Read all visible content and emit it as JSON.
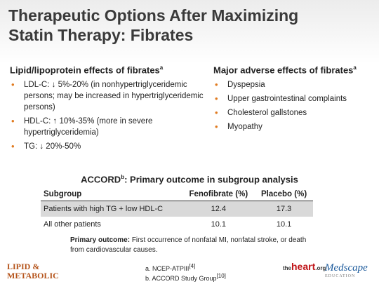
{
  "title": [
    "Therapeutic Options After Maximizing",
    "Statin Therapy: Fibrates"
  ],
  "left": {
    "heading": "Lipid/lipoprotein effects of fibrates",
    "sup": "a",
    "items": [
      "LDL-C: ↓ 5%-20% (in nonhypertriglyceridemic persons; may be increased in hypertriglyceridemic persons)",
      "HDL-C: ↑ 10%-35% (more in severe hypertriglyceridemia)",
      "TG: ↓ 20%-50%"
    ]
  },
  "right": {
    "heading": "Major adverse effects of fibrates",
    "sup": "a",
    "items": [
      "Dyspepsia",
      "Upper gastrointestinal complaints",
      "Cholesterol gallstones",
      "Myopathy"
    ]
  },
  "table": {
    "title": [
      "ACCORD",
      "b",
      ": Primary outcome in subgroup analysis"
    ],
    "columns": [
      "Subgroup",
      "Fenofibrate (%)",
      "Placebo (%)"
    ],
    "rows": [
      [
        "Patients with high TG + low HDL-C",
        12.4,
        17.3
      ],
      [
        "All other patients",
        10.1,
        10.1
      ]
    ]
  },
  "note": {
    "label": "Primary outcome:",
    "text": "First occurrence of nonfatal MI, nonfatal stroke, or death from cardiovascular causes."
  },
  "footnotes": [
    [
      "a. NCEP-ATPIII",
      "[4]"
    ],
    [
      "b. ACCORD Study Group",
      "[10]"
    ]
  ],
  "logos": {
    "left": [
      "LIPID &",
      "METABOLIC"
    ],
    "heart": [
      "the",
      "heart",
      ".org"
    ],
    "medscape": [
      "Medscape",
      "EDUCATION"
    ]
  }
}
